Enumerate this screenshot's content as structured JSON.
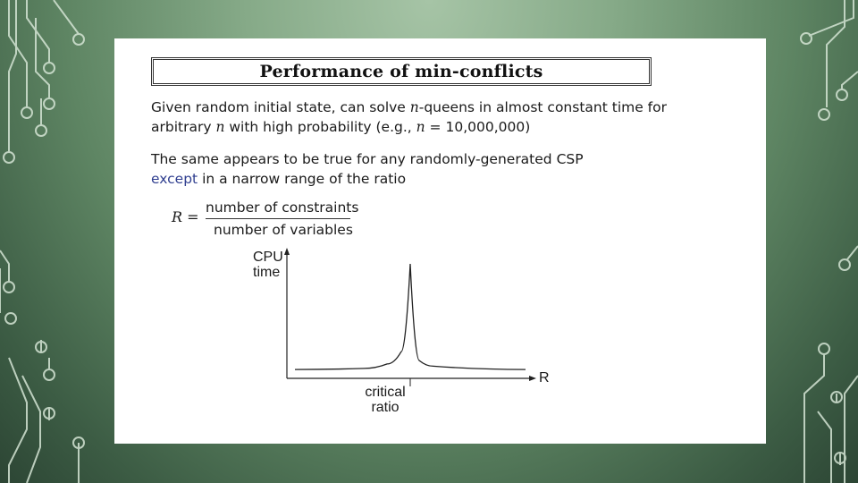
{
  "slide": {
    "title": "Performance of min-conflicts",
    "para1_line1": {
      "a": "Given random initial state, can solve ",
      "n": "n",
      "b": "-queens in almost constant time for"
    },
    "para1_line2": {
      "a": "arbitrary ",
      "n1": "n",
      "b": " with high probability (e.g., ",
      "n2": "n",
      "c": " = 10,000,000)"
    },
    "para2_line1": "The same appears to be true for any randomly-generated CSP",
    "para2_line2": {
      "accent": "except",
      "rest": " in a narrow range of the ratio"
    },
    "formula": {
      "lhs": "R =",
      "numerator": "number of constraints",
      "denominator": "number of variables"
    }
  },
  "chart_data": {
    "type": "line",
    "ylabel_line1": "CPU",
    "ylabel_line2": "time",
    "xlabel": "R",
    "annotation_line1": "critical",
    "annotation_line2": "ratio",
    "peak_x": 0.5,
    "curve": [
      [
        0,
        0.04
      ],
      [
        0.3,
        0.05
      ],
      [
        0.4,
        0.09
      ],
      [
        0.46,
        0.2
      ],
      [
        0.5,
        1.0
      ],
      [
        0.54,
        0.12
      ],
      [
        0.6,
        0.07
      ],
      [
        1,
        0.04
      ]
    ],
    "grid": false
  },
  "colors": {
    "accent": "#2f3e8f",
    "background": "#7fa382"
  }
}
